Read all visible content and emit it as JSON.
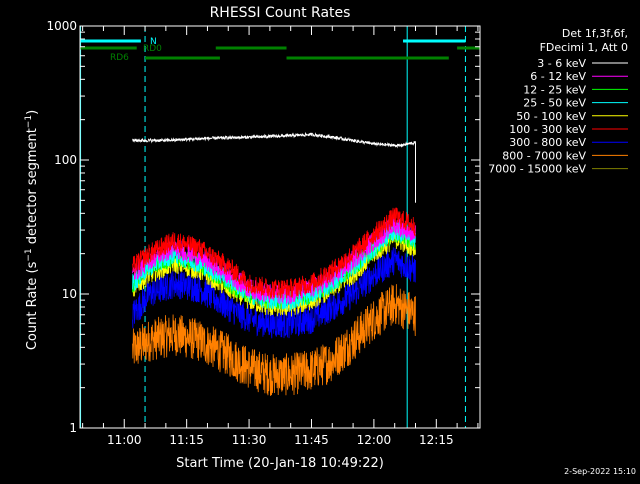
{
  "chart_data": {
    "type": "line",
    "title": "RHESSI Count Rates",
    "xlabel": "Start Time (20-Jan-18 10:49:22)",
    "ylabel": "Count Rate (s⁻¹ detector segment⁻¹)",
    "y_scale": "log",
    "ylim": [
      1,
      1000
    ],
    "x_time_range": [
      "10:49:22",
      "12:25:30"
    ],
    "x_ticks": [
      "11:00",
      "11:15",
      "11:30",
      "11:45",
      "12:00",
      "12:15"
    ],
    "y_ticks": [
      "1",
      "10",
      "100",
      "1000"
    ],
    "grid": false,
    "legend_position": "right",
    "legend_header": [
      "Det 1f,3f,6f,",
      "FDecimi 1, Att 0"
    ],
    "series": [
      {
        "name": "3 - 6 keV",
        "color": "#ffffff",
        "x": [
          "11:02",
          "11:10",
          "11:20",
          "11:30",
          "11:40",
          "11:45",
          "11:50",
          "12:00",
          "12:06",
          "12:10"
        ],
        "values": [
          140,
          140,
          145,
          148,
          152,
          155,
          148,
          132,
          128,
          135
        ]
      },
      {
        "name": "6 - 12 keV",
        "color": "#ff00ff",
        "x": [
          "11:02",
          "11:06",
          "11:12",
          "11:18",
          "11:25",
          "11:30",
          "11:35",
          "11:40",
          "11:45",
          "11:50",
          "11:55",
          "12:00",
          "12:05",
          "12:10"
        ],
        "values": [
          14,
          18,
          22,
          19,
          14,
          11,
          10,
          10,
          11,
          13,
          18,
          25,
          33,
          28
        ]
      },
      {
        "name": "12 - 25 keV",
        "color": "#00ff00",
        "x": [
          "11:02",
          "11:06",
          "11:12",
          "11:18",
          "11:25",
          "11:30",
          "11:35",
          "11:40",
          "11:45",
          "11:50",
          "11:55",
          "12:00",
          "12:05",
          "12:10"
        ],
        "values": [
          12,
          16,
          19,
          17,
          12,
          10,
          9,
          9,
          10,
          12,
          16,
          22,
          29,
          25
        ]
      },
      {
        "name": "25 - 50 keV",
        "color": "#00ffff",
        "x": [
          "11:02",
          "11:06",
          "11:12",
          "11:18",
          "11:25",
          "11:30",
          "11:35",
          "11:40",
          "11:45",
          "11:50",
          "11:55",
          "12:00",
          "12:05",
          "12:10"
        ],
        "values": [
          12,
          16,
          20,
          17,
          13,
          10,
          9,
          9,
          10,
          12,
          16,
          22,
          30,
          26
        ]
      },
      {
        "name": "50 - 100 keV",
        "color": "#ffff00",
        "x": [
          "11:02",
          "11:06",
          "11:12",
          "11:18",
          "11:25",
          "11:30",
          "11:35",
          "11:40",
          "11:45",
          "11:50",
          "11:55",
          "12:00",
          "12:05",
          "12:10"
        ],
        "values": [
          11,
          14,
          17,
          15,
          11,
          9,
          8,
          8,
          9,
          11,
          14,
          20,
          26,
          22
        ]
      },
      {
        "name": "100 - 300 keV",
        "color": "#ff0000",
        "x": [
          "11:02",
          "11:06",
          "11:12",
          "11:18",
          "11:25",
          "11:30",
          "11:35",
          "11:40",
          "11:45",
          "11:50",
          "11:55",
          "12:00",
          "12:05",
          "12:10"
        ],
        "values": [
          16,
          20,
          25,
          22,
          16,
          12,
          11,
          11,
          12,
          15,
          20,
          28,
          38,
          32
        ]
      },
      {
        "name": "300 - 800 keV",
        "color": "#0000ff",
        "x": [
          "11:02",
          "11:06",
          "11:12",
          "11:18",
          "11:25",
          "11:30",
          "11:35",
          "11:40",
          "11:45",
          "11:50",
          "11:55",
          "12:00",
          "12:05",
          "12:10"
        ],
        "values": [
          7,
          10,
          12,
          11,
          8,
          6.5,
          6,
          6,
          6.5,
          8,
          10,
          14,
          18,
          15
        ]
      },
      {
        "name": "800 - 7000 keV",
        "color": "#ff8000",
        "x": [
          "11:02",
          "11:06",
          "11:12",
          "11:18",
          "11:25",
          "11:30",
          "11:35",
          "11:40",
          "11:45",
          "11:50",
          "11:55",
          "12:00",
          "12:05",
          "12:10"
        ],
        "values": [
          3.8,
          4.5,
          5,
          4.5,
          3.5,
          2.8,
          2.5,
          2.5,
          2.7,
          3.2,
          4.5,
          6.5,
          8.5,
          7
        ]
      },
      {
        "name": "7000 - 15000 keV",
        "color": "#808000",
        "x": [],
        "values": []
      }
    ],
    "flag_bars": [
      {
        "label": "N",
        "color": "#00ffff",
        "segments": [
          [
            "10:49:22",
            "11:04"
          ],
          [
            "12:07",
            "12:22"
          ]
        ]
      },
      {
        "label": "RD0",
        "color": "#008000",
        "segments": [
          [
            "10:49:22",
            "11:03"
          ],
          [
            "11:22",
            "11:39"
          ],
          [
            "12:20",
            "12:25:30"
          ]
        ]
      },
      {
        "label": "RD6",
        "color": "#008000",
        "segments": [
          [
            "11:05",
            "11:23"
          ],
          [
            "11:39",
            "12:18"
          ]
        ]
      }
    ],
    "saa_lines": [
      {
        "time": "10:49:30",
        "style": "solid",
        "color": "#00ffff"
      },
      {
        "time": "11:05",
        "style": "dashed",
        "color": "#00ffff"
      },
      {
        "time": "12:08",
        "style": "solid",
        "color": "#00ffff"
      },
      {
        "time": "12:22",
        "style": "dashed",
        "color": "#00ffff"
      }
    ],
    "timestamp": "2-Sep-2022 15:10"
  }
}
